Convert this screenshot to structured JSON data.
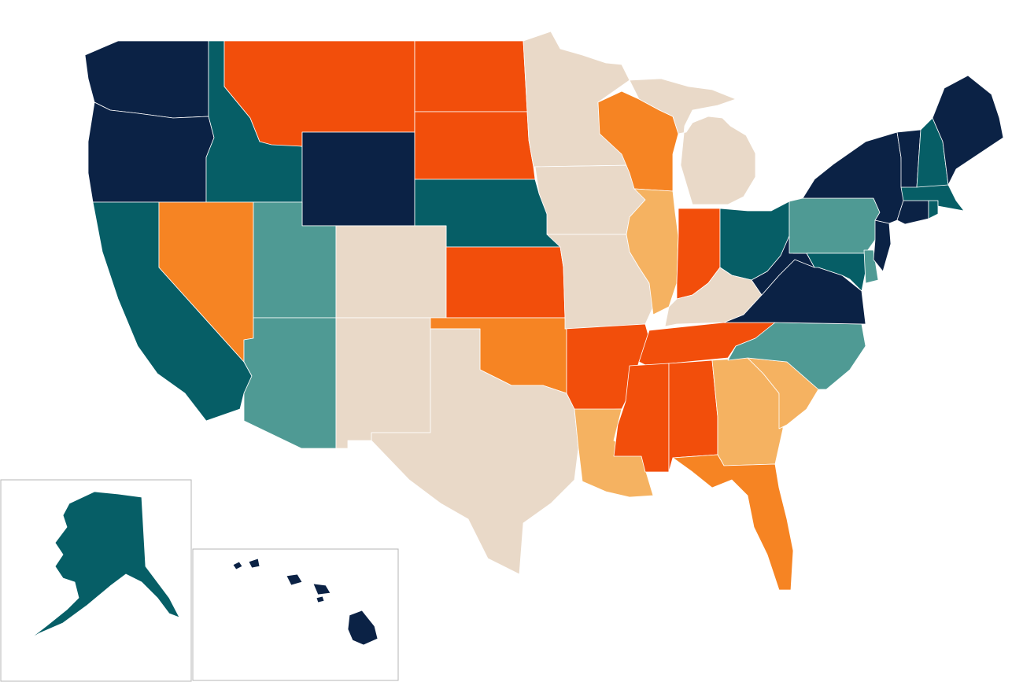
{
  "map": {
    "palette": {
      "dark-navy": "#0b2245",
      "dark-teal": "#065e66",
      "light-teal": "#4f9a94",
      "beige": "#e9d9c8",
      "light-orange": "#f5b261",
      "orange": "#f68423",
      "red-orange": "#f24e0b"
    },
    "states": [
      {
        "id": "WA",
        "fill": "dark-navy"
      },
      {
        "id": "OR",
        "fill": "dark-navy"
      },
      {
        "id": "ID",
        "fill": "dark-teal"
      },
      {
        "id": "MT",
        "fill": "red-orange"
      },
      {
        "id": "WY",
        "fill": "dark-navy"
      },
      {
        "id": "ND",
        "fill": "red-orange"
      },
      {
        "id": "SD",
        "fill": "red-orange"
      },
      {
        "id": "NE",
        "fill": "dark-teal"
      },
      {
        "id": "MN",
        "fill": "beige"
      },
      {
        "id": "IA",
        "fill": "beige"
      },
      {
        "id": "WI",
        "fill": "orange"
      },
      {
        "id": "MI",
        "fill": "beige"
      },
      {
        "id": "CA",
        "fill": "dark-teal"
      },
      {
        "id": "NV",
        "fill": "orange"
      },
      {
        "id": "UT",
        "fill": "light-teal"
      },
      {
        "id": "CO",
        "fill": "beige"
      },
      {
        "id": "AZ",
        "fill": "light-teal"
      },
      {
        "id": "NM",
        "fill": "beige"
      },
      {
        "id": "KS",
        "fill": "red-orange"
      },
      {
        "id": "OK",
        "fill": "orange"
      },
      {
        "id": "TX",
        "fill": "beige"
      },
      {
        "id": "MO",
        "fill": "beige"
      },
      {
        "id": "AR",
        "fill": "red-orange"
      },
      {
        "id": "LA",
        "fill": "light-orange"
      },
      {
        "id": "IL",
        "fill": "light-orange"
      },
      {
        "id": "IN",
        "fill": "red-orange"
      },
      {
        "id": "OH",
        "fill": "dark-teal"
      },
      {
        "id": "KY",
        "fill": "beige"
      },
      {
        "id": "TN",
        "fill": "red-orange"
      },
      {
        "id": "MS",
        "fill": "red-orange"
      },
      {
        "id": "AL",
        "fill": "red-orange"
      },
      {
        "id": "GA",
        "fill": "light-orange"
      },
      {
        "id": "FL",
        "fill": "orange"
      },
      {
        "id": "SC",
        "fill": "light-orange"
      },
      {
        "id": "NC",
        "fill": "light-teal"
      },
      {
        "id": "VA",
        "fill": "dark-navy"
      },
      {
        "id": "WV",
        "fill": "dark-navy"
      },
      {
        "id": "PA",
        "fill": "light-teal"
      },
      {
        "id": "MD",
        "fill": "dark-teal"
      },
      {
        "id": "DE",
        "fill": "light-teal"
      },
      {
        "id": "NJ",
        "fill": "dark-navy"
      },
      {
        "id": "NY",
        "fill": "dark-navy"
      },
      {
        "id": "CT",
        "fill": "dark-navy"
      },
      {
        "id": "RI",
        "fill": "dark-teal"
      },
      {
        "id": "MA",
        "fill": "dark-teal"
      },
      {
        "id": "VT",
        "fill": "dark-navy"
      },
      {
        "id": "NH",
        "fill": "dark-teal"
      },
      {
        "id": "ME",
        "fill": "dark-navy"
      },
      {
        "id": "AK",
        "fill": "dark-teal"
      },
      {
        "id": "HI",
        "fill": "dark-navy"
      }
    ]
  }
}
